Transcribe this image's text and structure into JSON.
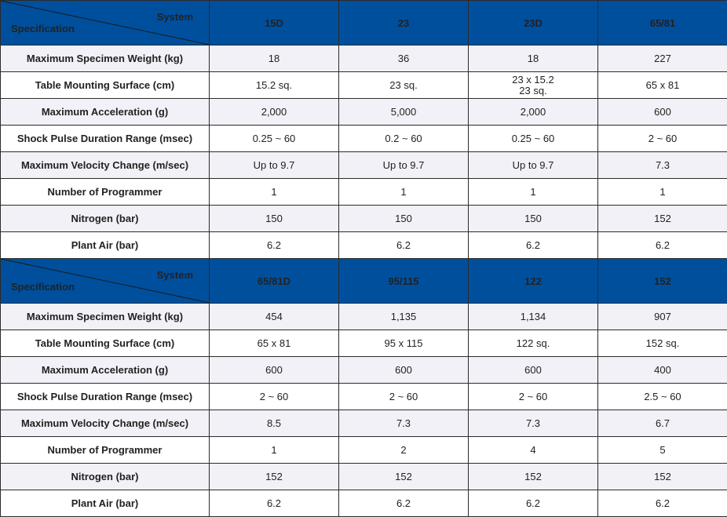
{
  "corner": {
    "system_label": "System",
    "specification_label": "Specification"
  },
  "tables": [
    {
      "columns": [
        "15D",
        "23",
        "23D",
        "65/81"
      ],
      "rows": [
        {
          "label": "Maximum Specimen Weight (kg)",
          "values": [
            "18",
            "36",
            "18",
            "227"
          ]
        },
        {
          "label": "Table Mounting Surface (cm)",
          "values": [
            "15.2 sq.",
            "23 sq.",
            "23 x 15.2",
            "65 x 81"
          ],
          "extra": "23 sq."
        },
        {
          "label": "Maximum Acceleration (g)",
          "values": [
            "2,000",
            "5,000",
            "2,000",
            "600"
          ]
        },
        {
          "label": "Shock Pulse Duration Range (msec)",
          "values": [
            "0.25 ~ 60",
            "0.2 ~ 60",
            "0.25 ~ 60",
            "2 ~ 60"
          ]
        },
        {
          "label": "Maximum Velocity Change (m/sec)",
          "values": [
            "Up to 9.7",
            "Up to 9.7",
            "Up to 9.7",
            "7.3"
          ]
        },
        {
          "label": "Number of Programmer",
          "values": [
            "1",
            "1",
            "1",
            "1"
          ]
        },
        {
          "label": "Nitrogen (bar)",
          "values": [
            "150",
            "150",
            "150",
            "152"
          ]
        },
        {
          "label": "Plant Air (bar)",
          "values": [
            "6.2",
            "6.2",
            "6.2",
            "6.2"
          ]
        }
      ]
    },
    {
      "columns": [
        "65/81D",
        "95/115",
        "122",
        "152"
      ],
      "rows": [
        {
          "label": "Maximum Specimen Weight (kg)",
          "values": [
            "454",
            "1,135",
            "1,134",
            "907"
          ]
        },
        {
          "label": "Table Mounting Surface (cm)",
          "values": [
            "65 x 81",
            "95 x 115",
            "122 sq.",
            "152 sq."
          ]
        },
        {
          "label": "Maximum Acceleration (g)",
          "values": [
            "600",
            "600",
            "600",
            "400"
          ]
        },
        {
          "label": "Shock Pulse Duration Range (msec)",
          "values": [
            "2 ~ 60",
            "2 ~ 60",
            "2 ~ 60",
            "2.5 ~ 60"
          ]
        },
        {
          "label": "Maximum Velocity Change (m/sec)",
          "values": [
            "8.5",
            "7.3",
            "7.3",
            "6.7"
          ]
        },
        {
          "label": "Number of Programmer",
          "values": [
            "1",
            "2",
            "4",
            "5"
          ]
        },
        {
          "label": "Nitrogen (bar)",
          "values": [
            "152",
            "152",
            "152",
            "152"
          ]
        },
        {
          "label": "Plant Air (bar)",
          "values": [
            "6.2",
            "6.2",
            "6.2",
            "6.2"
          ]
        }
      ]
    }
  ],
  "colors": {
    "header_bg": "#004f9d",
    "header_text": "#ffffff",
    "shade_row": "#f1f1f7",
    "border": "#2b2b2b"
  }
}
